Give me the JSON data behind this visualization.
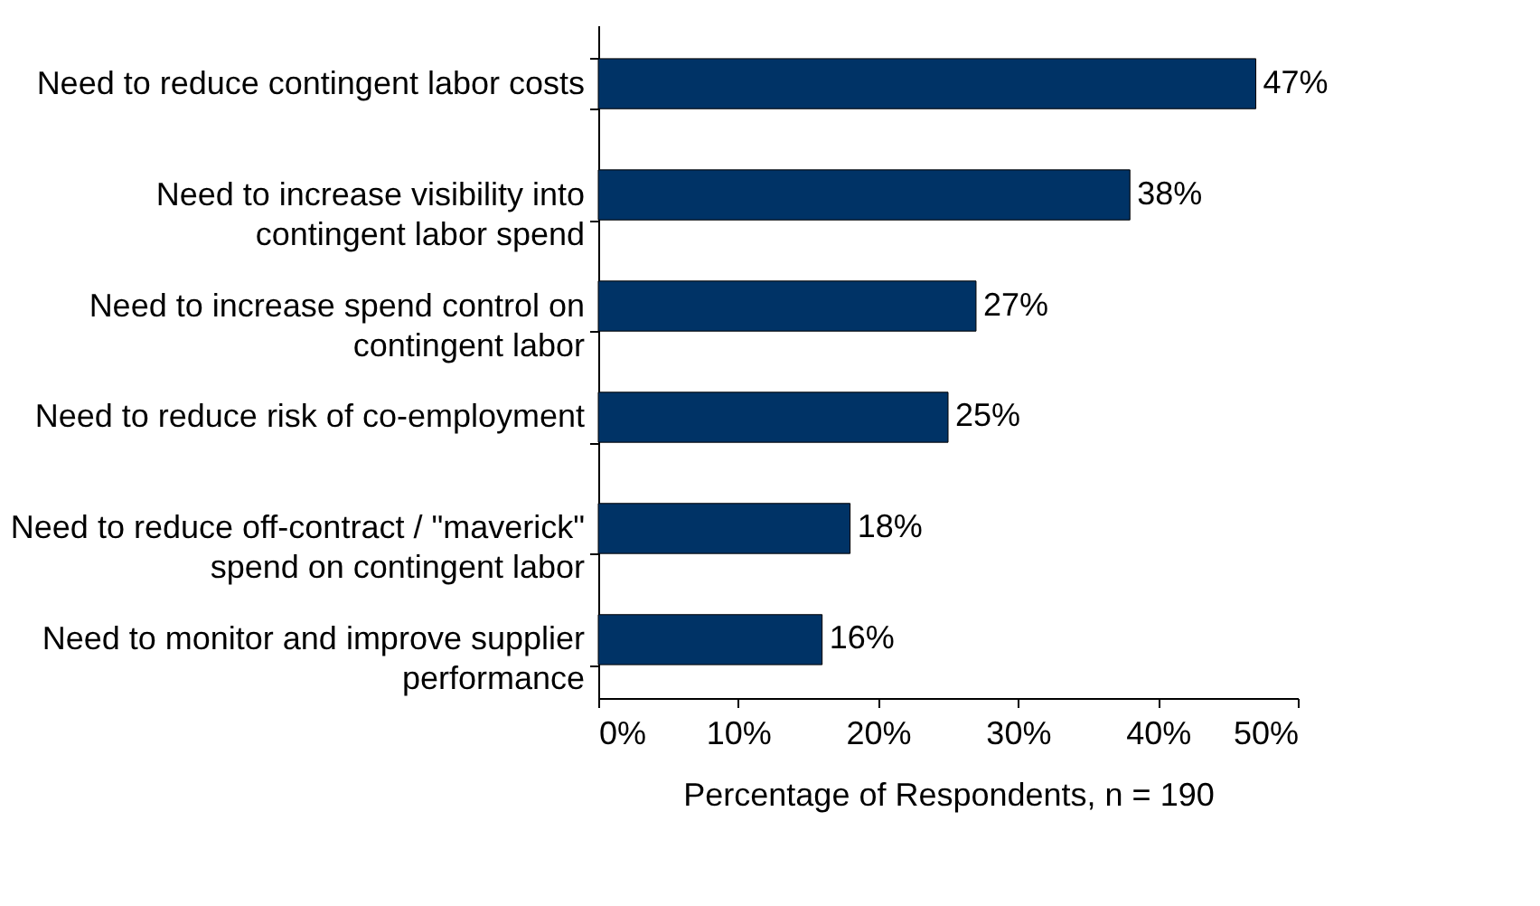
{
  "chart_data": {
    "type": "bar",
    "orientation": "horizontal",
    "xlabel": "Percentage of Respondents, n = 190",
    "categories": [
      "Need to reduce contingent labor costs",
      "Need to increase visibility into\ncontingent labor spend",
      "Need to increase spend control on\ncontingent labor",
      "Need to reduce risk of co-employment",
      "Need to reduce off-contract / \"maverick\"\nspend on contingent labor",
      "Need to monitor and improve supplier\nperformance"
    ],
    "values": [
      47,
      38,
      27,
      25,
      18,
      16
    ],
    "value_labels": [
      "47%",
      "38%",
      "27%",
      "25%",
      "18%",
      "16%"
    ],
    "color": "#003366",
    "xlim": [
      0,
      50
    ],
    "xticks": [
      {
        "value": 0,
        "label": "0%"
      },
      {
        "value": 10,
        "label": "10%"
      },
      {
        "value": 20,
        "label": "20%"
      },
      {
        "value": 30,
        "label": "30%"
      },
      {
        "value": 40,
        "label": "40%"
      },
      {
        "value": 50,
        "label": "50%"
      }
    ],
    "grid": false
  }
}
